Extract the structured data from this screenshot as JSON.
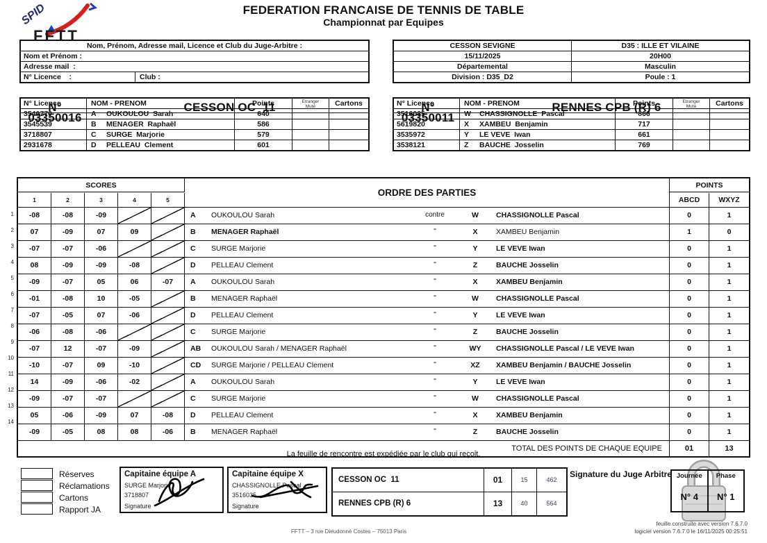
{
  "header": {
    "title": "FEDERATION FRANCAISE DE TENNIS DE TABLE",
    "subtitle": "Championnat par Equipes"
  },
  "logo": {
    "spid": "SPID",
    "fftt": "FFTT"
  },
  "judge_box": {
    "title": "Nom, Prénom, Adresse mail, Licence et Club du Juge-Arbitre :",
    "name_label": "Nom et Prénom :",
    "mail_label": "Adresse mail  :",
    "licence_label": "N° Licence    :",
    "club_label": "Club :"
  },
  "match_info": {
    "rows": [
      [
        "CESSON SEVIGNE",
        "D35 : ILLE ET VILAINE"
      ],
      [
        "15/11/2025",
        "20H00"
      ],
      [
        "Départemental",
        "Masculin"
      ],
      [
        "Division : D35_D2",
        "Poule : 1"
      ]
    ]
  },
  "team_headers": {
    "licence_label": "N° Licence",
    "name_label": "NOM - PRENOM",
    "points_label": "Points",
    "etranger_label": "Etranger",
    "mute_label": "Muté",
    "cartons_label": "Cartons"
  },
  "team_a": {
    "number": "N° 03350016",
    "name": "CESSON OC  11",
    "players": [
      {
        "licence": "3540770",
        "letter": "A",
        "name": "OUKOULOU  Sarah",
        "points": "640"
      },
      {
        "licence": "3545539",
        "letter": "B",
        "name": "MENAGER  Raphaël",
        "points": "586"
      },
      {
        "licence": "3718807",
        "letter": "C",
        "name": "SURGE  Marjorie",
        "points": "579"
      },
      {
        "licence": "2931678",
        "letter": "D",
        "name": "PELLEAU  Clement",
        "points": "601"
      }
    ]
  },
  "team_x": {
    "number": "N° 03350011",
    "name": "RENNES CPB (R) 6",
    "players": [
      {
        "licence": "3516035",
        "letter": "W",
        "name": "CHASSIGNOLLE  Pascal",
        "points": "866"
      },
      {
        "licence": "5619820",
        "letter": "X",
        "name": "XAMBEU  Benjamin",
        "points": "717"
      },
      {
        "licence": "3535972",
        "letter": "Y",
        "name": "LE VEVE  Iwan",
        "points": "661"
      },
      {
        "licence": "3538121",
        "letter": "Z",
        "name": "BAUCHE  Josselin",
        "points": "769"
      }
    ]
  },
  "match_grid": {
    "scores_label": "SCORES",
    "set_headers": [
      "1",
      "2",
      "3",
      "4",
      "5"
    ],
    "order_label": "ORDRE DES PARTIES",
    "points_label": "POINTS",
    "abcd_label": "ABCD",
    "wxyz_label": "WXYZ",
    "rows": [
      {
        "num": "1",
        "scores": [
          "-08",
          "-08",
          "-09",
          "",
          ""
        ],
        "letter": "A",
        "player": "OUKOULOU Sarah",
        "versus": "contre",
        "opp_letter": "W",
        "opponent": "CHASSIGNOLLE Pascal",
        "winner": "x",
        "pts_abcd": "0",
        "pts_wxyz": "1"
      },
      {
        "num": "2",
        "scores": [
          "07",
          "-09",
          "07",
          "09",
          ""
        ],
        "letter": "B",
        "player": "MENAGER Raphaël",
        "versus": "\"",
        "opp_letter": "X",
        "opponent": "XAMBEU Benjamin",
        "winner": "a",
        "pts_abcd": "1",
        "pts_wxyz": "0"
      },
      {
        "num": "3",
        "scores": [
          "-07",
          "-07",
          "-06",
          "",
          ""
        ],
        "letter": "C",
        "player": "SURGE Marjorie",
        "versus": "\"",
        "opp_letter": "Y",
        "opponent": "LE VEVE Iwan",
        "winner": "x",
        "pts_abcd": "0",
        "pts_wxyz": "1"
      },
      {
        "num": "4",
        "scores": [
          "08",
          "-09",
          "-09",
          "-08",
          ""
        ],
        "letter": "D",
        "player": "PELLEAU Clement",
        "versus": "\"",
        "opp_letter": "Z",
        "opponent": "BAUCHE Josselin",
        "winner": "x",
        "pts_abcd": "0",
        "pts_wxyz": "1"
      },
      {
        "num": "5",
        "scores": [
          "-09",
          "-07",
          "05",
          "06",
          "-07"
        ],
        "letter": "A",
        "player": "OUKOULOU Sarah",
        "versus": "\"",
        "opp_letter": "X",
        "opponent": "XAMBEU Benjamin",
        "winner": "x",
        "pts_abcd": "0",
        "pts_wxyz": "1"
      },
      {
        "num": "6",
        "scores": [
          "-01",
          "-08",
          "10",
          "-05",
          ""
        ],
        "letter": "B",
        "player": "MENAGER Raphaël",
        "versus": "\"",
        "opp_letter": "W",
        "opponent": "CHASSIGNOLLE Pascal",
        "winner": "x",
        "pts_abcd": "0",
        "pts_wxyz": "1"
      },
      {
        "num": "7",
        "scores": [
          "-07",
          "-05",
          "07",
          "-06",
          ""
        ],
        "letter": "D",
        "player": "PELLEAU Clement",
        "versus": "\"",
        "opp_letter": "Y",
        "opponent": "LE VEVE Iwan",
        "winner": "x",
        "pts_abcd": "0",
        "pts_wxyz": "1"
      },
      {
        "num": "8",
        "scores": [
          "-06",
          "-08",
          "-06",
          "",
          ""
        ],
        "letter": "C",
        "player": "SURGE Marjorie",
        "versus": "\"",
        "opp_letter": "Z",
        "opponent": "BAUCHE Josselin",
        "winner": "x",
        "pts_abcd": "0",
        "pts_wxyz": "1"
      },
      {
        "num": "9",
        "scores": [
          "-07",
          "12",
          "-07",
          "-09",
          ""
        ],
        "letter": "AB",
        "player": "OUKOULOU Sarah / MENAGER Raphaël",
        "versus": "\"",
        "opp_letter": "WY",
        "opponent": "CHASSIGNOLLE Pascal / LE VEVE Iwan",
        "winner": "x",
        "pts_abcd": "0",
        "pts_wxyz": "1"
      },
      {
        "num": "10",
        "scores": [
          "-10",
          "-07",
          "09",
          "-10",
          ""
        ],
        "letter": "CD",
        "player": "SURGE Marjorie / PELLEAU Clement",
        "versus": "\"",
        "opp_letter": "XZ",
        "opponent": "XAMBEU Benjamin / BAUCHE Josselin",
        "winner": "x",
        "pts_abcd": "0",
        "pts_wxyz": "1"
      },
      {
        "num": "11",
        "scores": [
          "14",
          "-09",
          "-06",
          "-02",
          ""
        ],
        "letter": "A",
        "player": "OUKOULOU Sarah",
        "versus": "\"",
        "opp_letter": "Y",
        "opponent": "LE VEVE Iwan",
        "winner": "x",
        "pts_abcd": "0",
        "pts_wxyz": "1"
      },
      {
        "num": "12",
        "scores": [
          "-09",
          "-07",
          "-07",
          "",
          ""
        ],
        "letter": "C",
        "player": "SURGE Marjorie",
        "versus": "\"",
        "opp_letter": "W",
        "opponent": "CHASSIGNOLLE Pascal",
        "winner": "x",
        "pts_abcd": "0",
        "pts_wxyz": "1"
      },
      {
        "num": "13",
        "scores": [
          "05",
          "-06",
          "-09",
          "07",
          "-08"
        ],
        "letter": "D",
        "player": "PELLEAU Clement",
        "versus": "\"",
        "opp_letter": "X",
        "opponent": "XAMBEU Benjamin",
        "winner": "x",
        "pts_abcd": "0",
        "pts_wxyz": "1"
      },
      {
        "num": "14",
        "scores": [
          "-09",
          "-05",
          "08",
          "08",
          "-06"
        ],
        "letter": "B",
        "player": "MENAGER Raphaël",
        "versus": "\"",
        "opp_letter": "Z",
        "opponent": "BAUCHE Josselin",
        "winner": "x",
        "pts_abcd": "0",
        "pts_wxyz": "1"
      }
    ],
    "total_label": "TOTAL DES POINTS DE CHAQUE EQUIPE",
    "total_abcd": "01",
    "total_wxyz": "13"
  },
  "footer_note": "La feuille de rencontre est expédiée par le club qui reçoit.",
  "checkboxes": [
    "Réserves",
    "Réclamations",
    "Cartons",
    "Rapport JA"
  ],
  "captain_a": {
    "title": "Capitaine équipe A",
    "name": "SURGE Marjorie",
    "licence": "3718807",
    "signature_label": "Signature"
  },
  "captain_x": {
    "title": "Capitaine équipe X",
    "name": "CHASSIGNOLLE Pascal",
    "licence": "3516035",
    "signature_label": "Signature"
  },
  "result_table": {
    "rows": [
      {
        "team": "CESSON OC  11",
        "points": "01",
        "val1": "15",
        "val2": "462"
      },
      {
        "team": "RENNES CPB (R) 6",
        "points": "13",
        "val1": "40",
        "val2": "564"
      }
    ]
  },
  "judge_signature_label": "Signature du Juge Arbitre",
  "journee_phase": {
    "journee_label": "Journée",
    "journee_value": "N° 4",
    "phase_label": "Phase",
    "phase_value": "N° 1"
  },
  "footer": {
    "address": "FFTT – 3 rue Dieudonné Costes – 75013 Paris",
    "version_line1": "feuille construite avec version 7.6.7.0",
    "version_line2": "logiciel version 7.6.7.0 le 16/11/2025  00:25:51"
  },
  "colors": {
    "red_accent": "#d42020",
    "blue_accent": "#2a3fb0",
    "navy_logo": "#232a66",
    "lock_gray": "#d6d6d6"
  }
}
